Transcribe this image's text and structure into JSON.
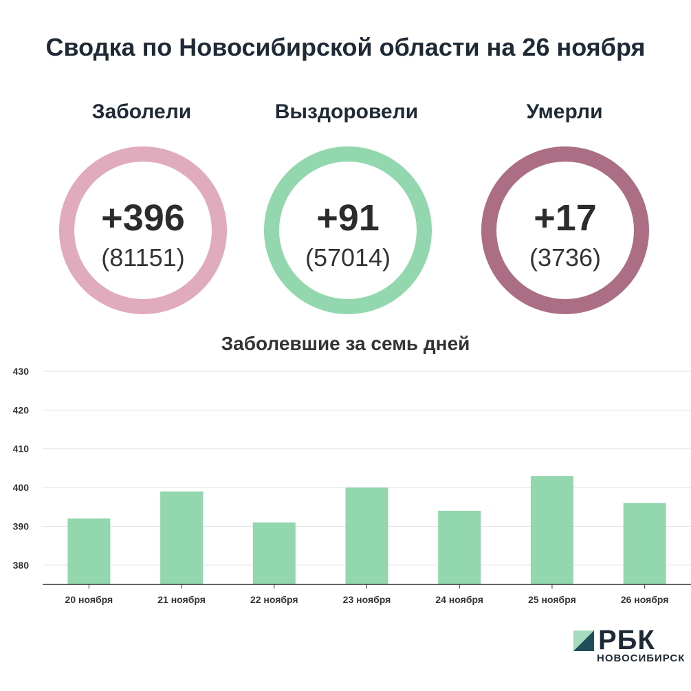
{
  "header": {
    "title": "Сводка по Новосибирской области на 26 ноября"
  },
  "stats": [
    {
      "label": "Заболели",
      "value": "+396",
      "total": "(81151)",
      "color": "#e0abbc"
    },
    {
      "label": "Выздоровели",
      "value": "+91",
      "total": "(57014)",
      "color": "#92d7ad"
    },
    {
      "label": "Умерли",
      "value": "+17",
      "total": "(3736)",
      "color": "#ab6e84"
    }
  ],
  "chart_data": {
    "type": "bar",
    "title": "Заболевшие за семь дней",
    "categories": [
      "20 ноября",
      "21 ноября",
      "22 ноября",
      "23 ноября",
      "24 ноября",
      "25 ноября",
      "26 ноября"
    ],
    "values": [
      392,
      399,
      391,
      400,
      394,
      403,
      396
    ],
    "yticks": [
      380,
      390,
      400,
      410,
      420,
      430
    ],
    "ylim": [
      375,
      430
    ],
    "grid": true,
    "bar_color": "#92d7ad"
  },
  "logo": {
    "name": "РБК",
    "sub": "НОВОСИБИРСК",
    "mark_dark": "#1f4d5a",
    "mark_light": "#a4dbbd"
  }
}
